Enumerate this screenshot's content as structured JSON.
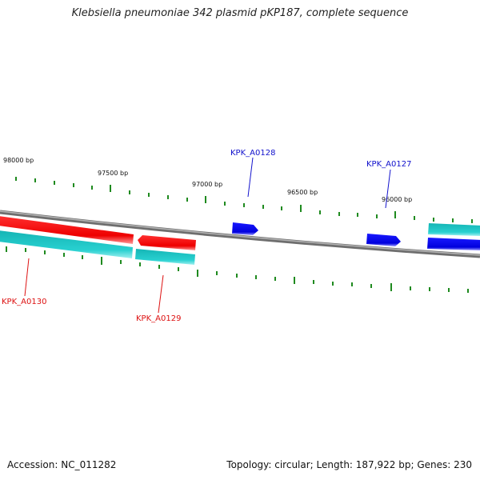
{
  "title": "Klebsiella pneumoniae 342 plasmid pKP187, complete sequence",
  "footer": {
    "accession": "Accession: NC_011282",
    "topology": "Topology: circular; Length: 187,922 bp; Genes: 230"
  },
  "colors": {
    "backbone": "#8a8a8a",
    "ticks": "#1f8a1f",
    "reverse_strand_gene": "#ff1a1a",
    "forward_strand_gene": "#1010ee",
    "cds_track": "#25c9c9",
    "reverse_label": "#dd1111",
    "forward_label": "#1111cc"
  },
  "position_labels": [
    "98000 bp",
    "97500 bp",
    "97000 bp",
    "96500 bp",
    "96000 bp"
  ],
  "genes": [
    {
      "id": "KPK_A0130",
      "strand": "reverse"
    },
    {
      "id": "KPK_A0129",
      "strand": "reverse"
    },
    {
      "id": "KPK_A0128",
      "strand": "forward"
    },
    {
      "id": "KPK_A0127",
      "strand": "forward"
    }
  ]
}
